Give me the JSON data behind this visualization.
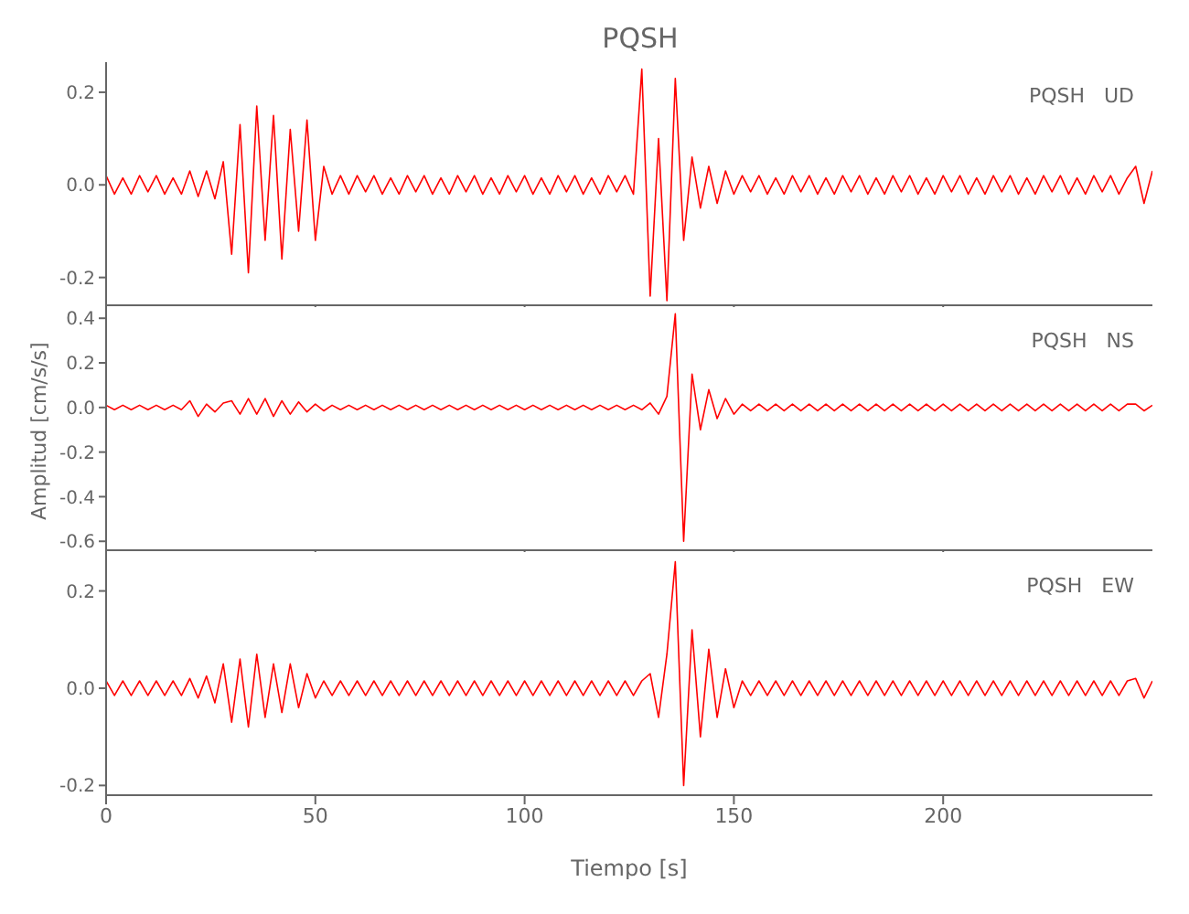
{
  "chart_data": [
    {
      "type": "line",
      "title": "PQSH",
      "annotations": [
        "PQSH   UD"
      ],
      "color": "#ff0000",
      "marker": "none",
      "tick_labels": "y",
      "xlim": [
        0,
        250
      ],
      "xticks": [
        0,
        50,
        100,
        150,
        200
      ],
      "ylim": [
        -0.26,
        0.265
      ],
      "yticks": [
        {
          "value": -0.2,
          "label": "-0.2"
        },
        {
          "value": 0,
          "label": "0.0"
        },
        {
          "value": 0.2,
          "label": "0.2"
        }
      ],
      "x": [
        0,
        2,
        4,
        6,
        8,
        10,
        12,
        14,
        16,
        18,
        20,
        22,
        24,
        26,
        28,
        30,
        32,
        34,
        36,
        38,
        40,
        42,
        44,
        46,
        48,
        50,
        52,
        54,
        56,
        58,
        60,
        62,
        64,
        66,
        68,
        70,
        72,
        74,
        76,
        78,
        80,
        82,
        84,
        86,
        88,
        90,
        92,
        94,
        96,
        98,
        100,
        102,
        104,
        106,
        108,
        110,
        112,
        114,
        116,
        118,
        120,
        122,
        124,
        126,
        128,
        130,
        132,
        134,
        136,
        138,
        140,
        142,
        144,
        146,
        148,
        150,
        152,
        154,
        156,
        158,
        160,
        162,
        164,
        166,
        168,
        170,
        172,
        174,
        176,
        178,
        180,
        182,
        184,
        186,
        188,
        190,
        192,
        194,
        196,
        198,
        200,
        202,
        204,
        206,
        208,
        210,
        212,
        214,
        216,
        218,
        220,
        222,
        224,
        226,
        228,
        230,
        232,
        234,
        236,
        238,
        240,
        242,
        244,
        246,
        248,
        250
      ],
      "values": [
        0.02,
        -0.02,
        0.015,
        -0.02,
        0.02,
        -0.015,
        0.02,
        -0.02,
        0.015,
        -0.02,
        0.03,
        -0.025,
        0.03,
        -0.03,
        0.05,
        -0.15,
        0.13,
        -0.19,
        0.17,
        -0.12,
        0.15,
        -0.16,
        0.12,
        -0.1,
        0.14,
        -0.12,
        0.04,
        -0.02,
        0.02,
        -0.02,
        0.02,
        -0.015,
        0.02,
        -0.02,
        0.015,
        -0.02,
        0.02,
        -0.015,
        0.02,
        -0.02,
        0.015,
        -0.02,
        0.02,
        -0.015,
        0.02,
        -0.02,
        0.015,
        -0.02,
        0.02,
        -0.015,
        0.02,
        -0.02,
        0.015,
        -0.02,
        0.02,
        -0.015,
        0.02,
        -0.02,
        0.015,
        -0.02,
        0.02,
        -0.015,
        0.02,
        -0.02,
        0.25,
        -0.24,
        0.1,
        -0.25,
        0.23,
        -0.12,
        0.06,
        -0.05,
        0.04,
        -0.04,
        0.03,
        -0.02,
        0.02,
        -0.015,
        0.02,
        -0.02,
        0.015,
        -0.02,
        0.02,
        -0.015,
        0.02,
        -0.02,
        0.015,
        -0.02,
        0.02,
        -0.015,
        0.02,
        -0.02,
        0.015,
        -0.02,
        0.02,
        -0.015,
        0.02,
        -0.02,
        0.015,
        -0.02,
        0.02,
        -0.015,
        0.02,
        -0.02,
        0.015,
        -0.02,
        0.02,
        -0.015,
        0.02,
        -0.02,
        0.015,
        -0.02,
        0.02,
        -0.015,
        0.02,
        -0.02,
        0.015,
        -0.02,
        0.02,
        -0.015,
        0.02,
        -0.02,
        0.015,
        0.04,
        -0.04,
        0.03
      ]
    },
    {
      "type": "line",
      "ylabel": "Amplitud [cm/s/s]",
      "annotations": [
        "PQSH   NS"
      ],
      "color": "#ff0000",
      "marker": "none",
      "tick_labels": "y",
      "xlim": [
        0,
        250
      ],
      "xticks": [
        0,
        50,
        100,
        150,
        200
      ],
      "ylim": [
        -0.64,
        0.45
      ],
      "yticks": [
        -0.6,
        -0.4,
        -0.2,
        {
          "value": 0,
          "label": "0.0"
        },
        0.2,
        0.4
      ],
      "x": [
        0,
        2,
        4,
        6,
        8,
        10,
        12,
        14,
        16,
        18,
        20,
        22,
        24,
        26,
        28,
        30,
        32,
        34,
        36,
        38,
        40,
        42,
        44,
        46,
        48,
        50,
        52,
        54,
        56,
        58,
        60,
        62,
        64,
        66,
        68,
        70,
        72,
        74,
        76,
        78,
        80,
        82,
        84,
        86,
        88,
        90,
        92,
        94,
        96,
        98,
        100,
        102,
        104,
        106,
        108,
        110,
        112,
        114,
        116,
        118,
        120,
        122,
        124,
        126,
        128,
        130,
        132,
        134,
        136,
        138,
        140,
        142,
        144,
        146,
        148,
        150,
        152,
        154,
        156,
        158,
        160,
        162,
        164,
        166,
        168,
        170,
        172,
        174,
        176,
        178,
        180,
        182,
        184,
        186,
        188,
        190,
        192,
        194,
        196,
        198,
        200,
        202,
        204,
        206,
        208,
        210,
        212,
        214,
        216,
        218,
        220,
        222,
        224,
        226,
        228,
        230,
        232,
        234,
        236,
        238,
        240,
        242,
        244,
        246,
        248,
        250
      ],
      "values": [
        0.01,
        -0.01,
        0.01,
        -0.01,
        0.01,
        -0.01,
        0.01,
        -0.01,
        0.01,
        -0.01,
        0.03,
        -0.04,
        0.015,
        -0.02,
        0.02,
        0.03,
        -0.03,
        0.04,
        -0.03,
        0.04,
        -0.04,
        0.03,
        -0.03,
        0.025,
        -0.02,
        0.015,
        -0.015,
        0.01,
        -0.01,
        0.01,
        -0.01,
        0.01,
        -0.01,
        0.01,
        -0.01,
        0.01,
        -0.01,
        0.01,
        -0.01,
        0.01,
        -0.01,
        0.01,
        -0.01,
        0.01,
        -0.01,
        0.01,
        -0.01,
        0.01,
        -0.01,
        0.01,
        -0.01,
        0.01,
        -0.01,
        0.01,
        -0.01,
        0.01,
        -0.01,
        0.01,
        -0.01,
        0.01,
        -0.01,
        0.01,
        -0.01,
        0.01,
        -0.01,
        0.02,
        -0.03,
        0.05,
        0.42,
        -0.6,
        0.15,
        -0.1,
        0.08,
        -0.05,
        0.04,
        -0.03,
        0.015,
        -0.015,
        0.015,
        -0.015,
        0.015,
        -0.015,
        0.015,
        -0.015,
        0.015,
        -0.015,
        0.015,
        -0.015,
        0.015,
        -0.015,
        0.015,
        -0.015,
        0.015,
        -0.015,
        0.015,
        -0.015,
        0.015,
        -0.015,
        0.015,
        -0.015,
        0.015,
        -0.015,
        0.015,
        -0.015,
        0.015,
        -0.015,
        0.015,
        -0.015,
        0.015,
        -0.015,
        0.015,
        -0.015,
        0.015,
        -0.015,
        0.015,
        -0.015,
        0.015,
        -0.015,
        0.015,
        -0.015,
        0.015,
        -0.015,
        0.015,
        0.015,
        -0.015,
        0.01
      ]
    },
    {
      "type": "line",
      "xlabel": "Tiempo [s]",
      "annotations": [
        "PQSH   EW"
      ],
      "color": "#ff0000",
      "marker": "none",
      "xlim": [
        0,
        250
      ],
      "xticks": [
        0,
        50,
        100,
        150,
        200
      ],
      "ylim": [
        -0.22,
        0.28
      ],
      "yticks": [
        {
          "value": -0.2,
          "label": "-0.2"
        },
        {
          "value": 0,
          "label": "0.0"
        },
        {
          "value": 0.2,
          "label": "0.2"
        }
      ],
      "x": [
        0,
        2,
        4,
        6,
        8,
        10,
        12,
        14,
        16,
        18,
        20,
        22,
        24,
        26,
        28,
        30,
        32,
        34,
        36,
        38,
        40,
        42,
        44,
        46,
        48,
        50,
        52,
        54,
        56,
        58,
        60,
        62,
        64,
        66,
        68,
        70,
        72,
        74,
        76,
        78,
        80,
        82,
        84,
        86,
        88,
        90,
        92,
        94,
        96,
        98,
        100,
        102,
        104,
        106,
        108,
        110,
        112,
        114,
        116,
        118,
        120,
        122,
        124,
        126,
        128,
        130,
        132,
        134,
        136,
        138,
        140,
        142,
        144,
        146,
        148,
        150,
        152,
        154,
        156,
        158,
        160,
        162,
        164,
        166,
        168,
        170,
        172,
        174,
        176,
        178,
        180,
        182,
        184,
        186,
        188,
        190,
        192,
        194,
        196,
        198,
        200,
        202,
        204,
        206,
        208,
        210,
        212,
        214,
        216,
        218,
        220,
        222,
        224,
        226,
        228,
        230,
        232,
        234,
        236,
        238,
        240,
        242,
        244,
        246,
        248,
        250
      ],
      "values": [
        0.015,
        -0.015,
        0.015,
        -0.015,
        0.015,
        -0.015,
        0.015,
        -0.015,
        0.015,
        -0.015,
        0.02,
        -0.02,
        0.025,
        -0.03,
        0.05,
        -0.07,
        0.06,
        -0.08,
        0.07,
        -0.06,
        0.05,
        -0.05,
        0.05,
        -0.04,
        0.03,
        -0.02,
        0.015,
        -0.015,
        0.015,
        -0.015,
        0.015,
        -0.015,
        0.015,
        -0.015,
        0.015,
        -0.015,
        0.015,
        -0.015,
        0.015,
        -0.015,
        0.015,
        -0.015,
        0.015,
        -0.015,
        0.015,
        -0.015,
        0.015,
        -0.015,
        0.015,
        -0.015,
        0.015,
        -0.015,
        0.015,
        -0.015,
        0.015,
        -0.015,
        0.015,
        -0.015,
        0.015,
        -0.015,
        0.015,
        -0.015,
        0.015,
        -0.015,
        0.015,
        0.03,
        -0.06,
        0.07,
        0.26,
        -0.2,
        0.12,
        -0.1,
        0.08,
        -0.06,
        0.04,
        -0.04,
        0.015,
        -0.015,
        0.015,
        -0.015,
        0.015,
        -0.015,
        0.015,
        -0.015,
        0.015,
        -0.015,
        0.015,
        -0.015,
        0.015,
        -0.015,
        0.015,
        -0.015,
        0.015,
        -0.015,
        0.015,
        -0.015,
        0.015,
        -0.015,
        0.015,
        -0.015,
        0.015,
        -0.015,
        0.015,
        -0.015,
        0.015,
        -0.015,
        0.015,
        -0.015,
        0.015,
        -0.015,
        0.015,
        -0.015,
        0.015,
        -0.015,
        0.015,
        -0.015,
        0.015,
        -0.015,
        0.015,
        -0.015,
        0.015,
        -0.015,
        0.015,
        0.02,
        -0.02,
        0.015
      ]
    }
  ]
}
